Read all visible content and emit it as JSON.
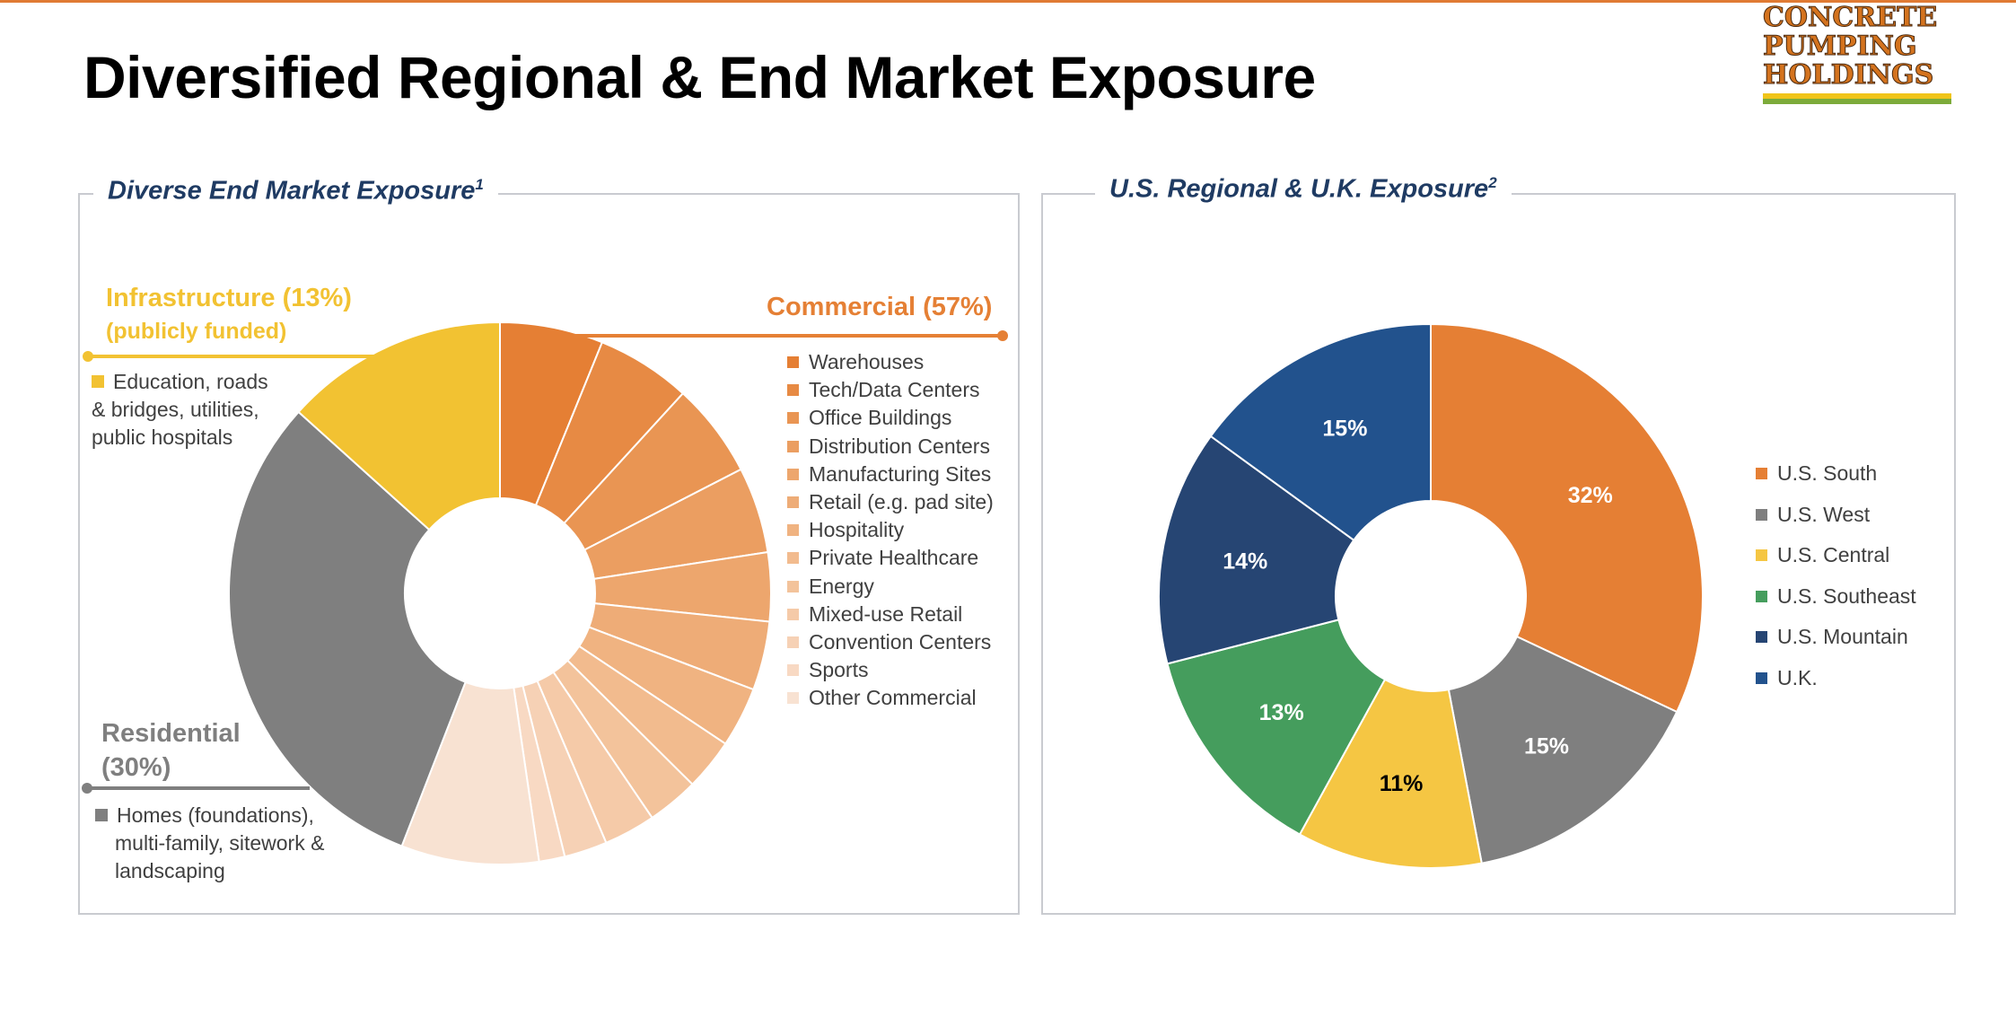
{
  "title": "Diversified Regional & End Market Exposure",
  "logo": {
    "lines": [
      "CONCRETE",
      "PUMPING",
      "HOLDINGS"
    ]
  },
  "left_panel": {
    "title": "Diverse End Market Exposure",
    "footnote": "1",
    "infrastructure": {
      "label": "Infrastructure (13%)",
      "sublabel": "(publicly funded)",
      "description_lines": [
        "Education, roads",
        "& bridges, utilities,",
        "public hospitals"
      ],
      "color": "#f2c232"
    },
    "commercial": {
      "label": "Commercial  (57%)",
      "color": "#e58035"
    },
    "residential": {
      "label_line1": "Residential",
      "label_line2": "(30%)",
      "description_lines": [
        "Homes (foundations),",
        "multi-family, sitework &",
        "landscaping"
      ],
      "color": "#7f7f7f"
    }
  },
  "right_panel": {
    "title": "U.S. Regional & U.K. Exposure",
    "footnote": "2"
  },
  "chart_data": [
    {
      "type": "pie",
      "title": "Diverse End Market Exposure",
      "donut": true,
      "series": [
        {
          "label": "Commercial",
          "value": 57,
          "color": "#e58035"
        },
        {
          "label": "Residential",
          "value": 30,
          "color": "#7f7f7f"
        },
        {
          "label": "Infrastructure",
          "value": 13,
          "color": "#f2c232"
        }
      ],
      "commercial_subcategories": [
        {
          "label": "Warehouses",
          "value": 6,
          "color": "#e57f34"
        },
        {
          "label": "Tech/Data Centers",
          "value": 5.5,
          "color": "#e78a44"
        },
        {
          "label": "Office Buildings",
          "value": 5.5,
          "color": "#e99553"
        },
        {
          "label": "Distribution Centers",
          "value": 5,
          "color": "#eb9e61"
        },
        {
          "label": "Manufacturing Sites",
          "value": 4,
          "color": "#eda66d"
        },
        {
          "label": "Retail (e.g. pad site)",
          "value": 4,
          "color": "#eeac77"
        },
        {
          "label": "Hospitality",
          "value": 3.5,
          "color": "#f0b381"
        },
        {
          "label": "Private Healthcare",
          "value": 3,
          "color": "#f2bb8e"
        },
        {
          "label": "Energy",
          "value": 3,
          "color": "#f3c39b"
        },
        {
          "label": "Mixed-use Retail",
          "value": 3,
          "color": "#f5caa8"
        },
        {
          "label": "Convention Centers",
          "value": 2.5,
          "color": "#f6d1b5"
        },
        {
          "label": "Sports",
          "value": 1.5,
          "color": "#f8d9c3"
        },
        {
          "label": "Other Commercial",
          "value": 8,
          "color": "#f8e2d2"
        }
      ]
    },
    {
      "type": "pie",
      "title": "U.S. Regional & U.K. Exposure",
      "donut": true,
      "series": [
        {
          "label": "U.S. South",
          "value": 32,
          "display": "32%",
          "color": "#e57f34"
        },
        {
          "label": "U.S. West",
          "value": 15,
          "display": "15%",
          "color": "#7f7f7f"
        },
        {
          "label": "U.S. Central",
          "value": 11,
          "display": "11%",
          "color": "#f5c643"
        },
        {
          "label": "U.S. Southeast",
          "value": 13,
          "display": "13%",
          "color": "#459d5d"
        },
        {
          "label": "U.S. Mountain",
          "value": 14,
          "display": "14%",
          "color": "#264573"
        },
        {
          "label": "U.K.",
          "value": 15,
          "display": "15%",
          "color": "#22528d"
        }
      ],
      "legend_position": "right"
    }
  ]
}
